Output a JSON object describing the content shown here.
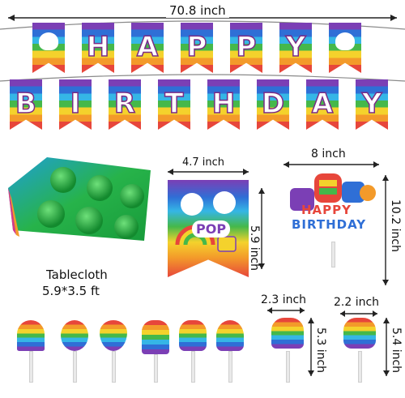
{
  "banner": {
    "length_label": "70.8 inch",
    "row1_letters": [
      "H",
      "A",
      "P",
      "P",
      "Y"
    ],
    "row2_letters": [
      "B",
      "I",
      "R",
      "T",
      "H",
      "D",
      "A",
      "Y"
    ]
  },
  "tablecloth": {
    "title": "Tablecloth",
    "size": "5.9*3.5 ft"
  },
  "pennant_flag": {
    "width_label": "4.7 inch",
    "height_label": "5.9 inch",
    "badge_text": "POP"
  },
  "cake_topper": {
    "width_label": "8 inch",
    "height_label": "10.2 inch",
    "line1": "HAPPY",
    "line2": "BIRTHDAY"
  },
  "cupcake_picks": {
    "cupcake_width": "2.3 inch",
    "cupcake_height": "5.3 inch",
    "bear_width": "2.2 inch",
    "bear_height": "5.4 inch",
    "items": [
      "rainbow-icon",
      "pineapple-icon",
      "heart-icon",
      "popsicle-icon",
      "ice-cream-icon",
      "unicorn-icon",
      "cupcake-icon",
      "bear-icon"
    ]
  },
  "colors": {
    "purple": "#7b3fb5",
    "blue": "#2f6fd6",
    "cyan": "#35b6e6",
    "green": "#45b84a",
    "yellow": "#f4d22c",
    "orange": "#f39a2a",
    "red": "#e7463b"
  }
}
